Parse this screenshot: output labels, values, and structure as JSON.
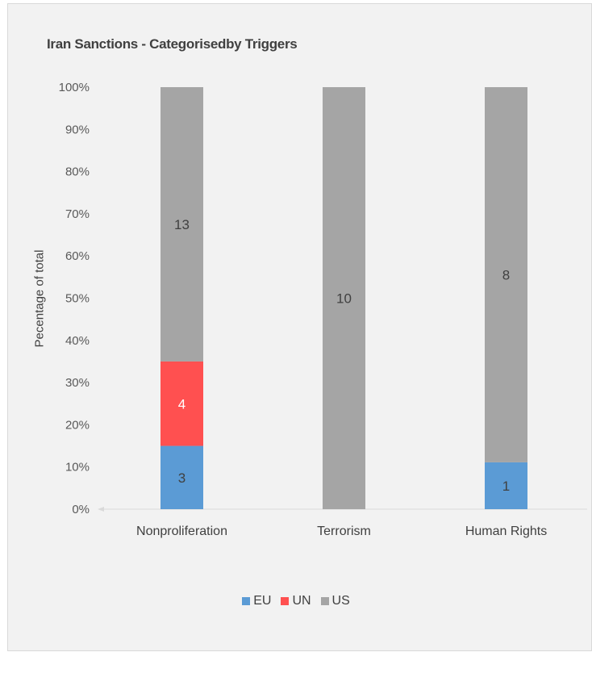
{
  "chart_data": {
    "type": "bar",
    "stacked": "percent",
    "title": "Iran Sanctions - Categorisedby Triggers",
    "xlabel": "",
    "ylabel": "Pecentage of total",
    "ylim": [
      0,
      100
    ],
    "yticks": [
      "0%",
      "10%",
      "20%",
      "30%",
      "40%",
      "50%",
      "60%",
      "70%",
      "80%",
      "90%",
      "100%"
    ],
    "categories": [
      "Nonproliferation",
      "Terrorism",
      "Human Rights"
    ],
    "series": [
      {
        "name": "EU",
        "color": "#5b9bd5",
        "label_color": "#404040",
        "values": [
          3,
          0,
          1
        ]
      },
      {
        "name": "UN",
        "color": "#ff5050",
        "label_color": "#ffffff",
        "values": [
          4,
          0,
          0
        ]
      },
      {
        "name": "US",
        "color": "#a5a5a5",
        "label_color": "#404040",
        "values": [
          13,
          10,
          8
        ]
      }
    ],
    "legend": "bottom",
    "grid": false
  }
}
